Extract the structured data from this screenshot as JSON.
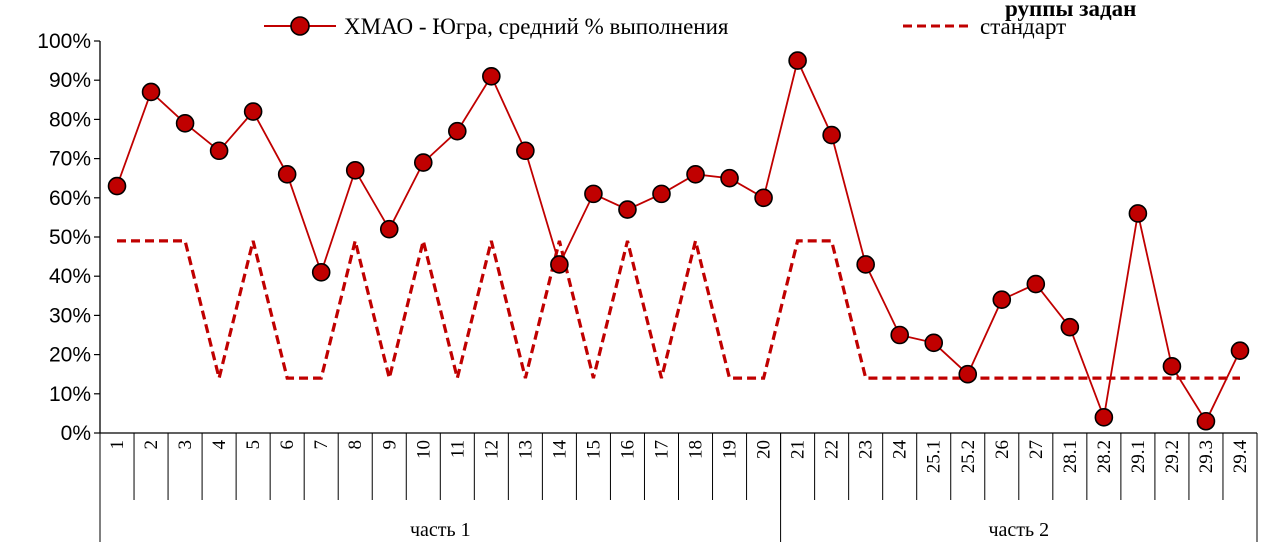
{
  "chart_data": {
    "type": "line",
    "title": "руппы  задан",
    "categories": [
      "1",
      "2",
      "3",
      "4",
      "5",
      "6",
      "7",
      "8",
      "9",
      "10",
      "11",
      "12",
      "13",
      "14",
      "15",
      "16",
      "17",
      "18",
      "19",
      "20",
      "21",
      "22",
      "23",
      "24",
      "25.1",
      "25.2",
      "26",
      "27",
      "28.1",
      "28.2",
      "29.1",
      "29.2",
      "29.3",
      "29.4"
    ],
    "groups": [
      {
        "label": "часть 1",
        "start": 0,
        "end": 19
      },
      {
        "label": "часть 2",
        "start": 20,
        "end": 33
      }
    ],
    "series": [
      {
        "name": "ХМАО - Югра, средний % выполнения",
        "color": "#c00000",
        "marker_fill": "#c00000",
        "values": [
          63,
          87,
          79,
          72,
          82,
          66,
          41,
          67,
          52,
          69,
          77,
          91,
          72,
          43,
          61,
          57,
          61,
          66,
          65,
          60,
          95,
          76,
          43,
          25,
          23,
          15,
          34,
          38,
          27,
          4,
          56,
          17,
          3,
          21
        ]
      },
      {
        "name": "стандарт",
        "color": "#c00000",
        "style": "dashed",
        "values": [
          49,
          49,
          49,
          14,
          49,
          14,
          14,
          49,
          14,
          49,
          14,
          49,
          14,
          49,
          14,
          49,
          14,
          49,
          14,
          14,
          49,
          49,
          14,
          14,
          14,
          14,
          14,
          14,
          14,
          14,
          14,
          14,
          14,
          14
        ]
      }
    ],
    "ylim": [
      0,
      100
    ],
    "yticks": [
      "0%",
      "10%",
      "20%",
      "30%",
      "40%",
      "50%",
      "60%",
      "70%",
      "80%",
      "90%",
      "100%"
    ],
    "grid": false,
    "legend": "top-center"
  }
}
